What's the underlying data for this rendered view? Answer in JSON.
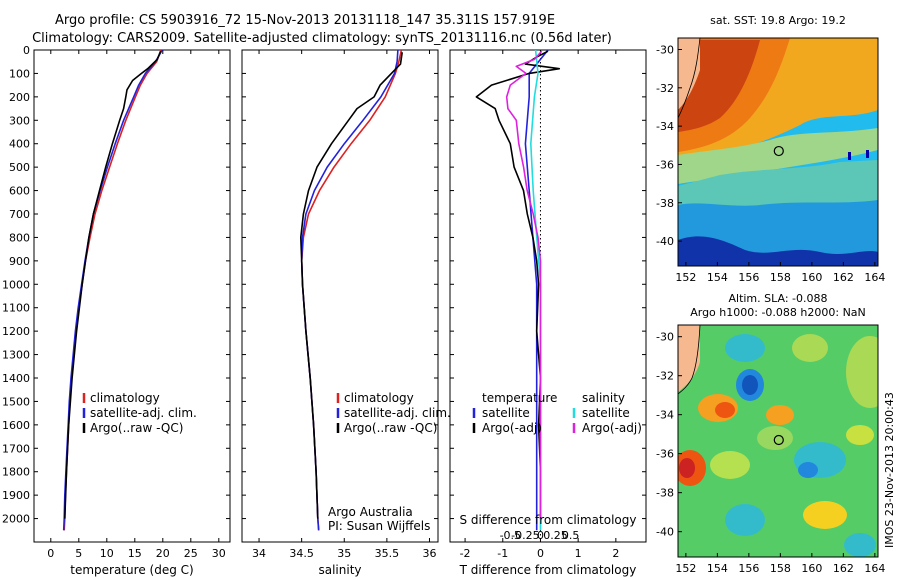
{
  "header": {
    "title_line1": "Argo profile: CS 5903916_72 15-Nov-2013 20131118_147 35.311S 157.919E",
    "title_line2": "Climatology: CARS2009. Satellite-adjusted climatology: synTS_20131116.nc (0.56d later)"
  },
  "colors": {
    "climatology": "#dd2222",
    "satellite": "#2222dd",
    "argo": "#000000",
    "sal_satellite": "#22dddd",
    "sal_argo": "#dd22dd",
    "land": "#f5b88f"
  },
  "chart_data": [
    {
      "type": "line",
      "id": "temperature",
      "xlabel": "temperature (deg C)",
      "ylabel": "",
      "xlim": [
        -3,
        32
      ],
      "ylim": [
        2100,
        0
      ],
      "x_ticks": [
        0,
        5,
        10,
        15,
        20,
        25,
        30
      ],
      "y_ticks": [
        0,
        100,
        200,
        300,
        400,
        500,
        600,
        700,
        800,
        900,
        1000,
        1100,
        1200,
        1300,
        1400,
        1500,
        1600,
        1700,
        1800,
        1900,
        2000
      ],
      "legend": {
        "position": "lower-center",
        "entries": [
          "climatology",
          "satellite-adj. clim.",
          "Argo(..raw -QC)"
        ]
      },
      "series": [
        {
          "name": "climatology",
          "color": "#dd2222",
          "depth": [
            0,
            50,
            100,
            150,
            200,
            300,
            400,
            500,
            600,
            700,
            800,
            900,
            1000,
            1100,
            1200,
            1300,
            1400,
            1500,
            1600,
            1700,
            1800,
            1900,
            2000,
            2050
          ],
          "values": [
            19.7,
            18.9,
            17.2,
            16.0,
            15.1,
            13.4,
            11.9,
            10.5,
            9.1,
            7.9,
            7.0,
            6.2,
            5.6,
            5.0,
            4.5,
            4.1,
            3.7,
            3.4,
            3.2,
            3.0,
            2.8,
            2.6,
            2.5,
            2.4
          ]
        },
        {
          "name": "satellite-adj. clim.",
          "color": "#2222dd",
          "depth": [
            0,
            50,
            100,
            150,
            200,
            300,
            400,
            500,
            600,
            700,
            800,
            900,
            1000,
            1100,
            1200,
            1300,
            1400,
            1500,
            1600,
            1700,
            1800,
            1900,
            2000,
            2050
          ],
          "values": [
            19.9,
            18.7,
            16.9,
            15.7,
            14.8,
            13.0,
            11.5,
            10.1,
            8.8,
            7.6,
            6.8,
            6.1,
            5.5,
            4.9,
            4.4,
            4.0,
            3.6,
            3.3,
            3.1,
            2.9,
            2.7,
            2.5,
            2.4,
            2.3
          ]
        },
        {
          "name": "Argo(..raw -QC)",
          "color": "#000000",
          "depth": [
            5,
            40,
            80,
            100,
            130,
            170,
            200,
            250,
            300,
            400,
            500,
            600,
            700,
            800,
            900,
            1000,
            1200,
            1400,
            1600,
            1800,
            2000
          ],
          "values": [
            19.6,
            19.0,
            17.3,
            16.2,
            14.6,
            13.6,
            13.4,
            13.0,
            12.3,
            11.0,
            9.8,
            8.7,
            7.6,
            6.8,
            6.2,
            5.6,
            4.6,
            3.8,
            3.2,
            2.8,
            2.5
          ]
        }
      ]
    },
    {
      "type": "line",
      "id": "salinity",
      "xlabel": "salinity",
      "ylabel": "",
      "xlim": [
        33.8,
        36.1
      ],
      "ylim": [
        2100,
        0
      ],
      "x_ticks": [
        34,
        34.5,
        35,
        35.5,
        36
      ],
      "legend": {
        "position": "lower-center",
        "entries": [
          "climatology",
          "satellite-adj. clim.",
          "Argo(..raw -QC)"
        ]
      },
      "annotation": [
        "Argo Australia",
        "PI: Susan Wijffels"
      ],
      "series": [
        {
          "name": "climatology",
          "color": "#dd2222",
          "depth": [
            0,
            50,
            100,
            200,
            300,
            400,
            500,
            600,
            700,
            800,
            900,
            1000,
            1200,
            1400,
            1600,
            1800,
            2000,
            2050
          ],
          "values": [
            35.67,
            35.64,
            35.6,
            35.48,
            35.3,
            35.08,
            34.88,
            34.71,
            34.58,
            34.52,
            34.5,
            34.51,
            34.55,
            34.6,
            34.64,
            34.67,
            34.69,
            34.7
          ]
        },
        {
          "name": "satellite-adj. clim.",
          "color": "#2222dd",
          "depth": [
            0,
            50,
            100,
            200,
            300,
            400,
            500,
            600,
            700,
            800,
            900,
            1000,
            1200,
            1400,
            1600,
            1800,
            2000,
            2050
          ],
          "values": [
            35.63,
            35.62,
            35.59,
            35.43,
            35.22,
            35.0,
            34.8,
            34.65,
            34.55,
            34.51,
            34.5,
            34.51,
            34.55,
            34.6,
            34.64,
            34.67,
            34.69,
            34.7
          ]
        },
        {
          "name": "Argo(..raw -QC)",
          "color": "#000000",
          "depth": [
            10,
            60,
            90,
            150,
            200,
            250,
            300,
            400,
            500,
            600,
            700,
            800,
            900,
            1000,
            1200,
            1400,
            1600,
            1800,
            2000
          ],
          "values": [
            35.68,
            35.66,
            35.58,
            35.42,
            35.35,
            35.15,
            35.05,
            34.85,
            34.68,
            34.58,
            34.52,
            34.49,
            34.5,
            34.51,
            34.55,
            34.6,
            34.64,
            34.67,
            34.69
          ]
        }
      ]
    },
    {
      "type": "line",
      "id": "differences",
      "xlabel": "T difference from climatology",
      "xlabel_top": "S difference from climatology",
      "xlim": [
        -2.4,
        2.8
      ],
      "ylim": [
        2100,
        0
      ],
      "x_ticks": [
        -2,
        -1,
        0,
        1,
        2
      ],
      "s_ticks": [
        -0.5,
        -0.25,
        0,
        0.25,
        0.5
      ],
      "s_tick_labels": [
        "-0.5",
        "-0.25",
        "0",
        "0.25",
        "0.5"
      ],
      "legend": {
        "position": "lower-center",
        "left_heading": "temperature",
        "right_heading": "salinity",
        "left_entries": [
          "satellite",
          "Argo(-adj)"
        ],
        "right_entries": [
          "satellite",
          "Argo(-adj)"
        ]
      },
      "series": [
        {
          "name": "T satellite",
          "color": "#2222dd",
          "depth": [
            0,
            100,
            200,
            400,
            600,
            800,
            1000,
            1500,
            2000,
            2050
          ],
          "values": [
            0.2,
            -0.3,
            -0.3,
            -0.4,
            -0.3,
            -0.2,
            -0.1,
            -0.1,
            -0.1,
            -0.1
          ]
        },
        {
          "name": "T Argo(-adj)",
          "color": "#000000",
          "depth": [
            5,
            30,
            60,
            80,
            100,
            150,
            200,
            250,
            300,
            400,
            500,
            600,
            700,
            800,
            900,
            1000,
            1200,
            1400,
            1600,
            1800,
            2000
          ],
          "values": [
            0.2,
            -0.1,
            -0.4,
            0.5,
            -0.3,
            -1.3,
            -1.7,
            -1.2,
            -1.1,
            -0.8,
            -0.7,
            -0.45,
            -0.35,
            -0.2,
            -0.1,
            -0.05,
            -0.1,
            0.0,
            -0.05,
            0.0,
            0.0
          ]
        },
        {
          "name": "S satellite",
          "color": "#22dddd",
          "depth": [
            0,
            100,
            200,
            400,
            600,
            800,
            1000,
            1500,
            2000,
            2050
          ],
          "values": [
            -0.04,
            -0.02,
            -0.05,
            -0.08,
            -0.06,
            -0.03,
            0.0,
            0.0,
            0.0,
            0.0
          ]
        },
        {
          "name": "S Argo(-adj)",
          "color": "#dd22dd",
          "depth": [
            5,
            40,
            70,
            100,
            150,
            200,
            250,
            300,
            400,
            500,
            600,
            700,
            800,
            900,
            1000,
            1200,
            1500,
            2000
          ],
          "values": [
            0.01,
            -0.05,
            -0.2,
            -0.12,
            -0.25,
            -0.28,
            -0.27,
            -0.2,
            -0.18,
            -0.14,
            -0.11,
            -0.06,
            -0.02,
            0.0,
            0.0,
            0.0,
            0.0,
            0.0
          ]
        }
      ]
    }
  ],
  "sst_map": {
    "title": "sat. SST: 19.8 Argo: 19.2",
    "lon_ticks": [
      152,
      154,
      156,
      158,
      160,
      162,
      164
    ],
    "lat_ticks": [
      -30,
      -32,
      -34,
      -36,
      -38,
      -40
    ],
    "profile_lon": 157.9,
    "profile_lat": -35.3
  },
  "sla_map": {
    "title_line1": "Altim. SLA: -0.088",
    "title_line2": "Argo h1000: -0.088 h2000: NaN",
    "lon_ticks": [
      152,
      154,
      156,
      158,
      160,
      162,
      164
    ],
    "lat_ticks": [
      -30,
      -32,
      -34,
      -36,
      -38,
      -40
    ],
    "profile_lon": 157.9,
    "profile_lat": -35.3,
    "side_label": "IMOS 23-Nov-2013 20:00:43"
  }
}
